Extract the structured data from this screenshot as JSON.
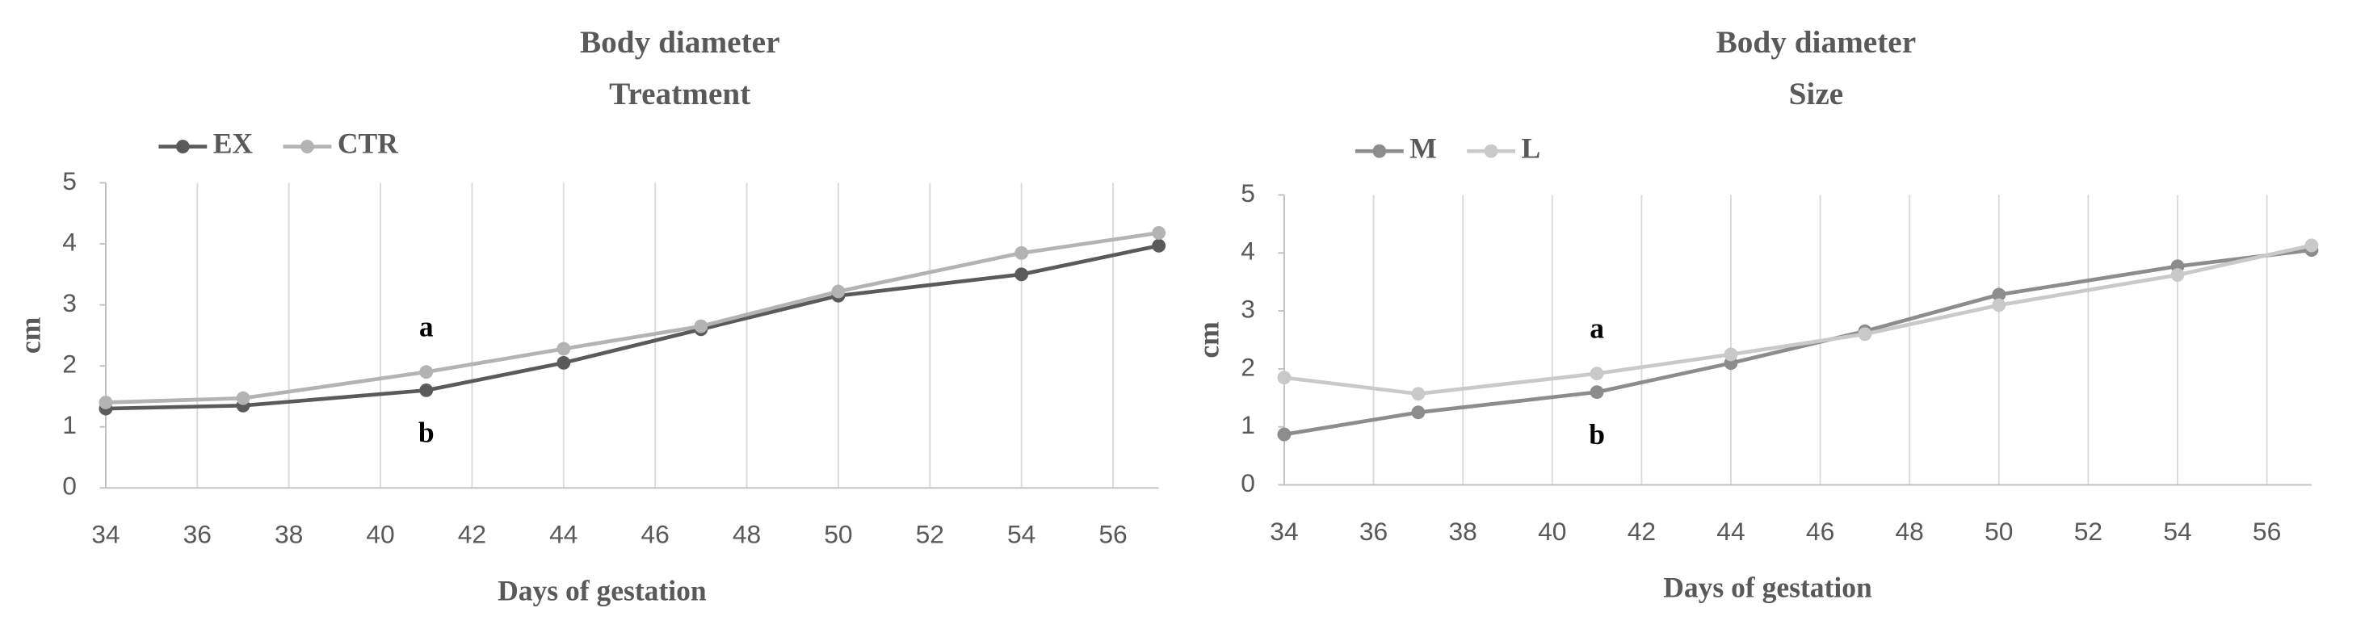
{
  "chart_data": [
    {
      "type": "line",
      "title": "Body diameter",
      "subtitle": "Treatment",
      "x": [
        34,
        37,
        41,
        44,
        47,
        50,
        54,
        57
      ],
      "series": [
        {
          "name": "EX",
          "color": "#5a5a5a",
          "values": [
            1.3,
            1.35,
            1.6,
            2.05,
            2.6,
            3.15,
            3.5,
            3.97
          ]
        },
        {
          "name": "CTR",
          "color": "#b3b3b3",
          "values": [
            1.4,
            1.47,
            1.9,
            2.28,
            2.65,
            3.22,
            3.85,
            4.18
          ]
        }
      ],
      "annotations": [
        "a",
        "b"
      ],
      "xlabel": "Days of gestation",
      "ylabel": "cm",
      "xlim": [
        34,
        57
      ],
      "xticks": [
        34,
        36,
        38,
        40,
        42,
        44,
        46,
        48,
        50,
        52,
        54,
        56
      ],
      "ylim": [
        0,
        5
      ],
      "yticks": [
        0,
        1,
        2,
        3,
        4,
        5
      ],
      "grid": true,
      "legend": "top-left"
    },
    {
      "type": "line",
      "title": "Body diameter",
      "subtitle": "Size",
      "x": [
        34,
        37,
        41,
        44,
        47,
        50,
        54,
        57
      ],
      "series": [
        {
          "name": "M",
          "color": "#8c8c8c",
          "values": [
            0.87,
            1.25,
            1.6,
            2.1,
            2.65,
            3.28,
            3.77,
            4.05
          ]
        },
        {
          "name": "L",
          "color": "#c9c9c9",
          "values": [
            1.85,
            1.57,
            1.92,
            2.25,
            2.6,
            3.1,
            3.62,
            4.13
          ]
        }
      ],
      "annotations": [
        "a",
        "b"
      ],
      "xlabel": "Days of gestation",
      "ylabel": "cm",
      "xlim": [
        34,
        57
      ],
      "xticks": [
        34,
        36,
        38,
        40,
        42,
        44,
        46,
        48,
        50,
        52,
        54,
        56
      ],
      "ylim": [
        0,
        5
      ],
      "yticks": [
        0,
        1,
        2,
        3,
        4,
        5
      ],
      "grid": true,
      "legend": "top-left"
    }
  ]
}
